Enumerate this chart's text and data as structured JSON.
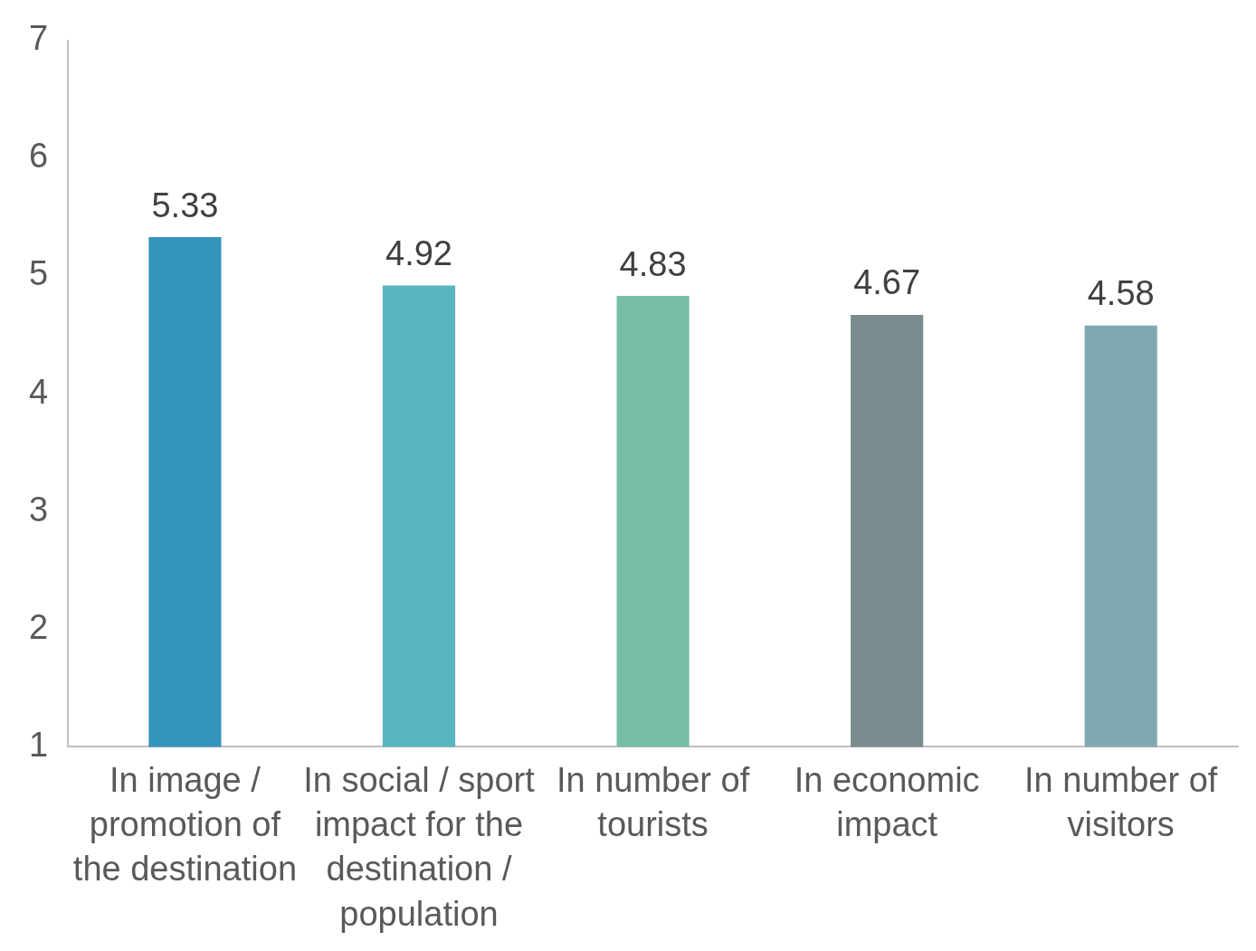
{
  "chart_data": {
    "type": "bar",
    "categories": [
      "In image / promotion of the destination",
      "In social / sport impact for the destination / population",
      "In number of tourists",
      "In economic impact",
      "In number of visitors"
    ],
    "values": [
      5.33,
      4.92,
      4.83,
      4.67,
      4.58
    ],
    "colors": [
      "#3594bb",
      "#5ab5c2",
      "#76bfa6",
      "#7a8c8e",
      "#80a9b3"
    ],
    "ylim": [
      1,
      7
    ],
    "yticks": [
      1,
      2,
      3,
      4,
      5,
      6,
      7
    ],
    "grid": false,
    "legend": false,
    "data_labels": true
  }
}
